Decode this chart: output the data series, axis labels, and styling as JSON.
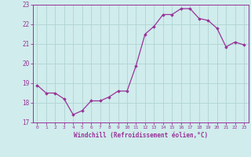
{
  "x": [
    0,
    1,
    2,
    3,
    4,
    5,
    6,
    7,
    8,
    9,
    10,
    11,
    12,
    13,
    14,
    15,
    16,
    17,
    18,
    19,
    20,
    21,
    22,
    23
  ],
  "y": [
    18.9,
    18.5,
    18.5,
    18.2,
    17.4,
    17.6,
    18.1,
    18.1,
    18.3,
    18.6,
    18.6,
    19.9,
    21.5,
    21.9,
    22.5,
    22.5,
    22.8,
    22.8,
    22.3,
    22.2,
    21.8,
    20.85,
    21.1,
    20.95
  ],
  "line_color": "#993399",
  "marker_color": "#993399",
  "bg_color": "#d0ecec",
  "grid_color": "#b0d4d4",
  "xlabel": "Windchill (Refroidissement éolien,°C)",
  "xlabel_color": "#993399",
  "tick_color": "#993399",
  "ylim": [
    17,
    23
  ],
  "yticks": [
    17,
    18,
    19,
    20,
    21,
    22,
    23
  ],
  "xlim": [
    -0.5,
    23.5
  ],
  "xticks": [
    0,
    1,
    2,
    3,
    4,
    5,
    6,
    7,
    8,
    9,
    10,
    11,
    12,
    13,
    14,
    15,
    16,
    17,
    18,
    19,
    20,
    21,
    22,
    23
  ]
}
